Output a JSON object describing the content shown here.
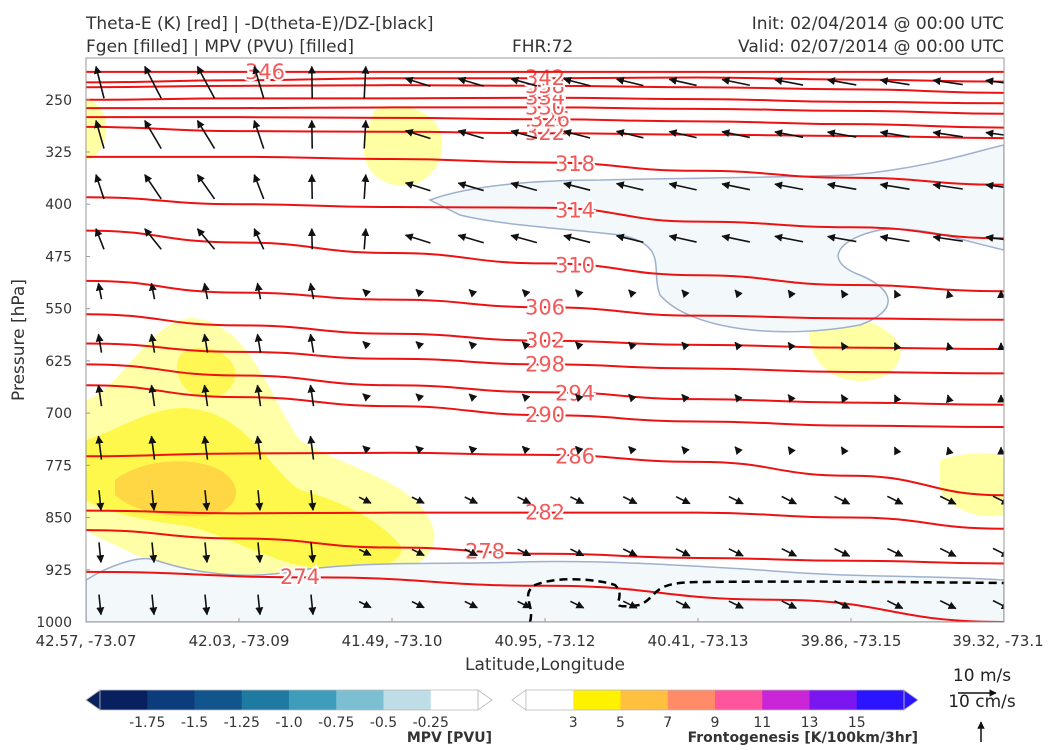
{
  "header": {
    "title_line1": "Theta-E (K) [red] | -D(theta-E)/DZ-[black]",
    "title_line2": "Fgen [filled] | MPV (PVU) [filled]",
    "fhr": "FHR:72",
    "init": "Init: 02/04/2014 @ 00:00 UTC",
    "valid": "Valid: 02/07/2014 @ 00:00 UTC"
  },
  "chart_data": {
    "type": "cross-section",
    "xlabel": "Latitude,Longitude",
    "ylabel": "Pressure [hPa]",
    "x_ticks": [
      "42.57, -73.07",
      "42.03, -73.09",
      "41.49, -73.10",
      "40.95, -73.12",
      "40.41, -73.13",
      "39.86, -73.15",
      "39.32, -73.1"
    ],
    "y_ticks": [
      250,
      325,
      400,
      475,
      550,
      625,
      700,
      775,
      850,
      925,
      1000
    ],
    "ylim": [
      1000,
      190
    ],
    "y_scale": "pressure-reversed",
    "theta_e_contours": [
      {
        "value": 274,
        "label": "274",
        "y": [
          928,
          936,
          948,
          968,
          1000
        ]
      },
      {
        "value": 278,
        "label": "278",
        "y": [
          868,
          880,
          893,
          902,
          908,
          912,
          916
        ]
      },
      {
        "value": 282,
        "label": "282",
        "y": [
          840,
          844,
          843,
          843,
          843,
          850,
          866
        ]
      },
      {
        "value": 286,
        "label": "286",
        "y": [
          762,
          758,
          757,
          760,
          770,
          790,
          818
        ]
      },
      {
        "value": 290,
        "label": "290",
        "y": [
          660,
          677,
          690,
          703,
          712,
          718,
          720
        ]
      },
      {
        "value": 294,
        "label": "294",
        "y": [
          630,
          646,
          660,
          670,
          680,
          685,
          688
        ]
      },
      {
        "value": 298,
        "label": "298",
        "y": [
          600,
          612,
          622,
          630,
          636,
          641,
          643
        ]
      },
      {
        "value": 302,
        "label": "302",
        "y": [
          558,
          574,
          586,
          596,
          602,
          606,
          608
        ]
      },
      {
        "value": 306,
        "label": "306",
        "y": [
          510,
          527,
          537,
          548,
          560,
          564,
          566
        ]
      },
      {
        "value": 310,
        "label": "310",
        "y": [
          438,
          455,
          470,
          485,
          502,
          516,
          525
        ]
      },
      {
        "value": 314,
        "label": "314",
        "y": [
          390,
          400,
          404,
          405,
          425,
          433,
          449
        ]
      },
      {
        "value": 318,
        "label": "318",
        "y": [
          332,
          332,
          335,
          340,
          352,
          362,
          372
        ]
      },
      {
        "value": 322,
        "label": "322",
        "y": [
          289,
          295,
          296,
          298,
          300,
          302,
          305
        ]
      },
      {
        "value": 326,
        "label": "326",
        "y": [
          275,
          275,
          276,
          278,
          281,
          285,
          290
        ]
      },
      {
        "value": 330,
        "label": "330",
        "y": [
          262,
          262,
          261,
          261,
          263,
          266,
          270
        ]
      },
      {
        "value": 334,
        "label": "334",
        "y": [
          250,
          248,
          248,
          247,
          249,
          253,
          255
        ]
      },
      {
        "value": 338,
        "label": "338",
        "y": [
          232,
          230,
          229,
          230,
          232,
          235,
          240
        ]
      },
      {
        "value": 342,
        "label": "342",
        "y": [
          225,
          222,
          219,
          219,
          218,
          221,
          224
        ]
      },
      {
        "value": 346,
        "label": "346",
        "y": [
          210,
          210,
          210,
          210,
          210,
          210,
          210
        ]
      }
    ],
    "mpv_colorbar": {
      "label": "MPV [PVU]",
      "ticks": [
        "-1.75",
        "-1.5",
        "-1.25",
        "-1.0",
        "-0.75",
        "-0.5",
        "-0.25"
      ],
      "colors": [
        "#08205e",
        "#0c3c7c",
        "#12558d",
        "#1e7aa1",
        "#3f9dbc",
        "#7cbfd3",
        "#bfdde6",
        "#ffffff"
      ]
    },
    "fgen_colorbar": {
      "label": "Frontogenesis [K/100km/3hr]",
      "ticks": [
        "3",
        "5",
        "7",
        "9",
        "11",
        "13",
        "15"
      ],
      "colors": [
        "#ffffff",
        "#fff200",
        "#ffbf3f",
        "#ff8b68",
        "#ff559c",
        "#c926d8",
        "#7b16f0",
        "#2b14ff"
      ]
    },
    "wind_scale": {
      "horizontal": "10 m/s",
      "vertical": "10 cm/s"
    }
  }
}
